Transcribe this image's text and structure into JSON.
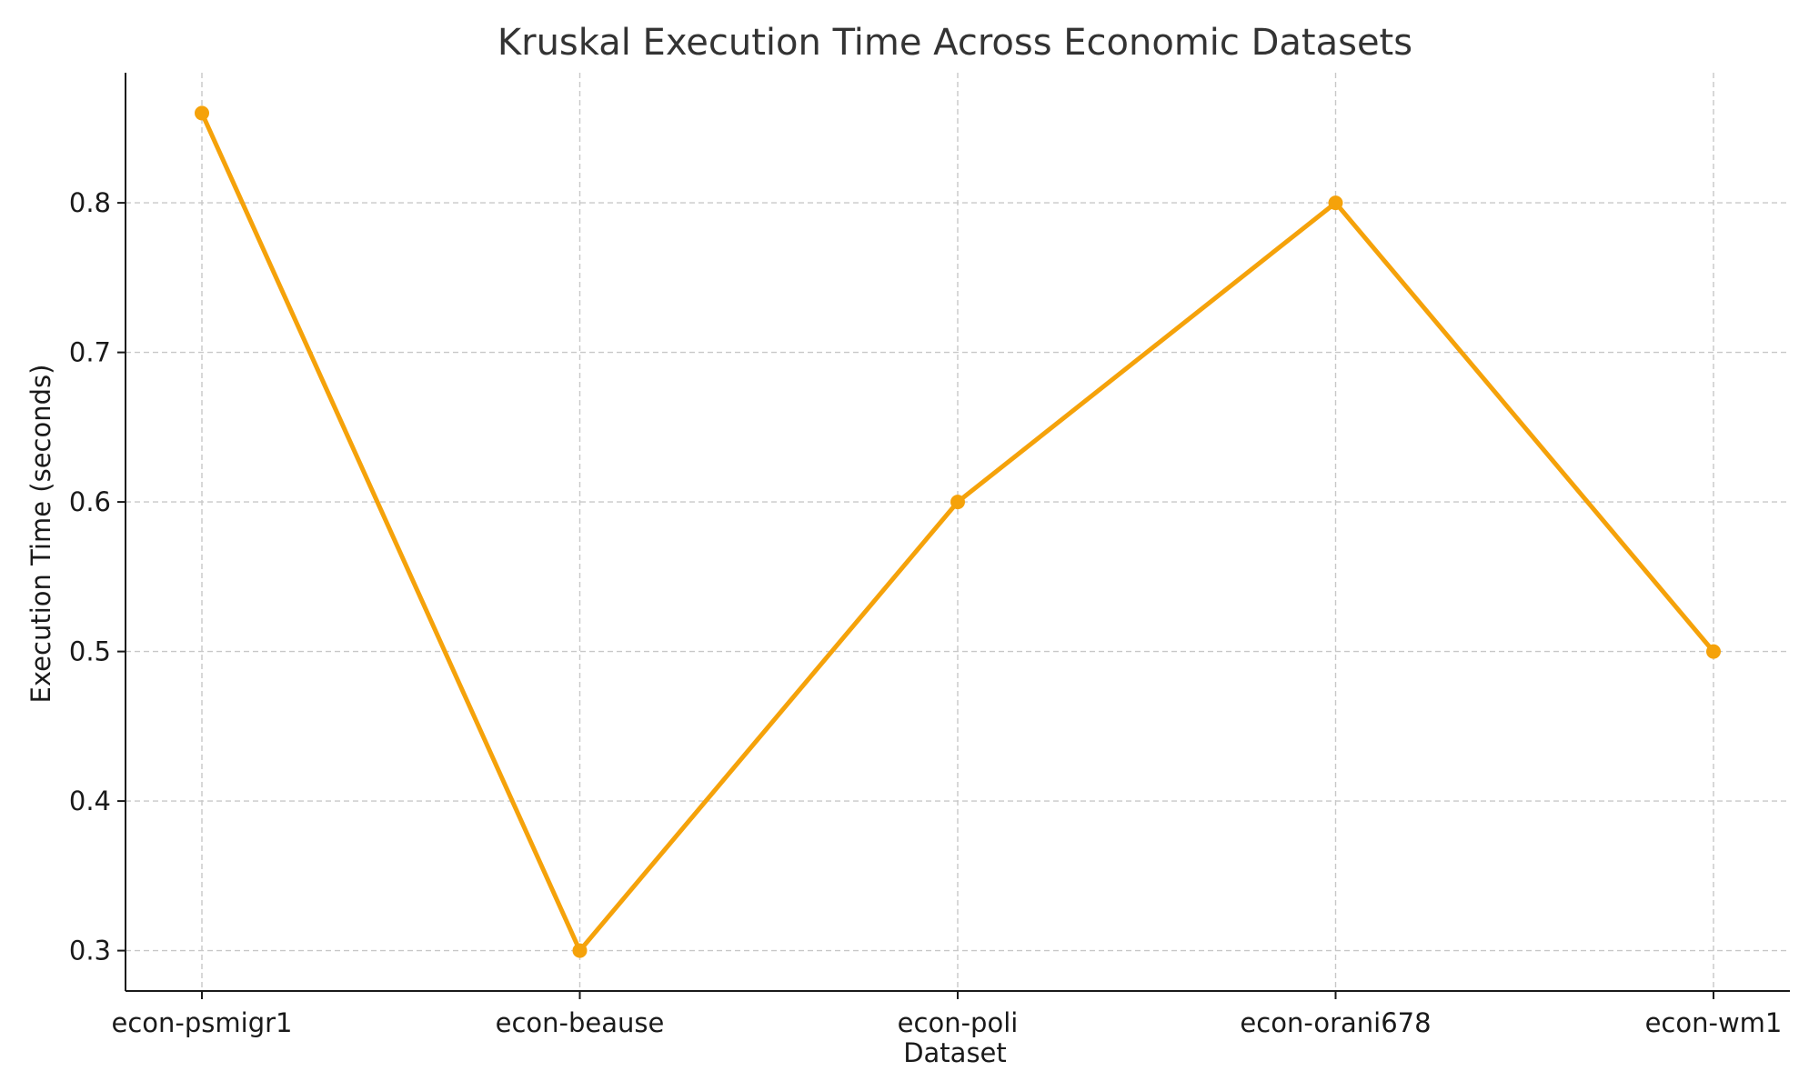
{
  "chart_data": {
    "type": "line",
    "title": "Kruskal Execution Time Across Economic Datasets",
    "xlabel": "Dataset",
    "ylabel": "Execution Time (seconds)",
    "categories": [
      "econ-psmigr1",
      "econ-beause",
      "econ-poli",
      "econ-orani678",
      "econ-wm1"
    ],
    "series": [
      {
        "values": [
          0.86,
          0.3,
          0.6,
          0.8,
          0.5
        ]
      }
    ],
    "ylim": [
      0.273,
      0.887
    ],
    "yticks": [
      0.3,
      0.4,
      0.5,
      0.6,
      0.7,
      0.8
    ],
    "ytick_labels": [
      "0.3",
      "0.4",
      "0.5",
      "0.6",
      "0.7",
      "0.8"
    ],
    "grid": true,
    "colors": {
      "line": "#f5a20a",
      "marker": "#f5a20a"
    }
  }
}
